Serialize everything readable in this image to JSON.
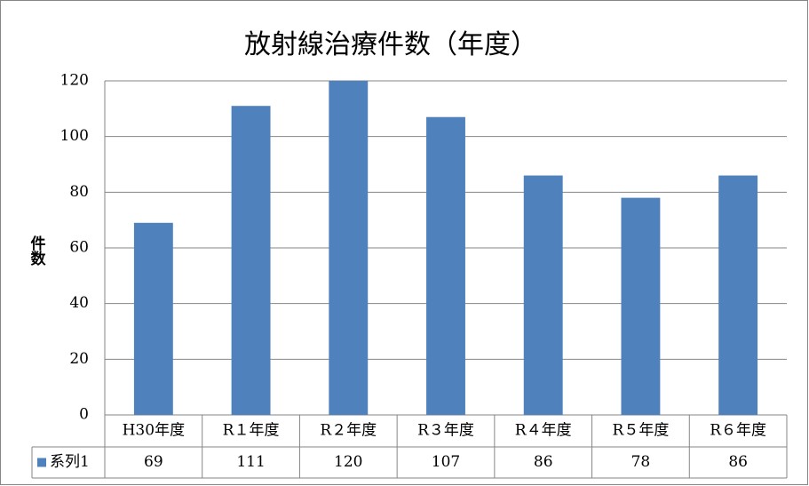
{
  "chart_data": {
    "type": "bar",
    "title": "放射線治療件数（年度）",
    "y_label": "件数",
    "categories": [
      "H30年度",
      "R１年度",
      "R２年度",
      "R３年度",
      "R４年度",
      "R５年度",
      "R６年度"
    ],
    "series": [
      {
        "name": "系列1",
        "color": "#4f81bd",
        "values": [
          69,
          111,
          120,
          107,
          86,
          78,
          86
        ]
      }
    ],
    "ylim": [
      0,
      120
    ],
    "yticks": [
      0,
      20,
      40,
      60,
      80,
      100,
      120
    ],
    "grid": true,
    "data_table": true
  }
}
